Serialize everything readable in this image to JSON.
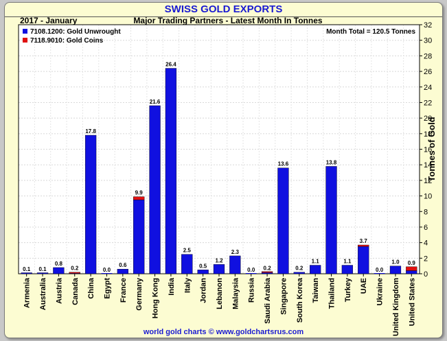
{
  "chart_data": {
    "type": "bar",
    "stacked": true,
    "title": "SWISS GOLD EXPORTS",
    "period": "2017 - January",
    "subtitle": "Major Trading Partners - Latest Month In Tonnes",
    "total_label": "Month Total = 120.5 Tonnes",
    "ylabel": "Tonnes of Gold",
    "ylim": [
      0,
      32
    ],
    "ytick_step": 2,
    "grid": true,
    "legend_position": "top-left",
    "footer": "world gold charts © www.goldchartsrus.com",
    "categories": [
      "Armenia",
      "Australia",
      "Austria",
      "Canada",
      "China",
      "Egypt",
      "France",
      "Germany",
      "Hong Kong",
      "India",
      "Italy",
      "Jordan",
      "Lebanon",
      "Malaysia",
      "Russia",
      "Saudi Arabia",
      "Singapore",
      "South Korea",
      "Taiwan",
      "Thailand",
      "Turkey",
      "UAE",
      "Ukraine",
      "United Kingdom",
      "United States"
    ],
    "totals": [
      "0.1",
      "0.1",
      "0.8",
      "0.2",
      "17.8",
      "0.0",
      "0.6",
      "9.9",
      "21.6",
      "26.4",
      "2.5",
      "0.5",
      "1.2",
      "2.3",
      "0.0",
      "0.2",
      "13.6",
      "0.2",
      "1.1",
      "13.8",
      "1.1",
      "3.7",
      "0.0",
      "1.0",
      "0.9"
    ],
    "series": [
      {
        "name": "7108.1200: Gold Unwrought",
        "color": "#1010e0",
        "values": [
          0.1,
          0.1,
          0.8,
          0.05,
          17.8,
          0.0,
          0.6,
          9.5,
          21.6,
          26.4,
          2.5,
          0.5,
          1.2,
          2.3,
          0.0,
          0.15,
          13.6,
          0.2,
          1.1,
          13.8,
          1.1,
          3.5,
          0.0,
          1.0,
          0.4
        ]
      },
      {
        "name": "7118.9010: Gold Coins",
        "color": "#e01010",
        "values": [
          0.0,
          0.0,
          0.0,
          0.15,
          0.0,
          0.0,
          0.0,
          0.4,
          0.0,
          0.0,
          0.0,
          0.0,
          0.0,
          0.0,
          0.0,
          0.05,
          0.0,
          0.0,
          0.0,
          0.0,
          0.0,
          0.2,
          0.0,
          0.0,
          0.5
        ]
      }
    ]
  }
}
